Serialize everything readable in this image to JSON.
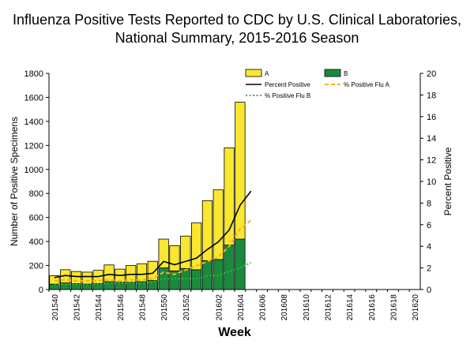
{
  "chart_data": {
    "type": "bar",
    "title_line1": "Influenza Positive Tests Reported to CDC by U.S. Clinical Laboratories,",
    "title_line2": "National Summary, 2015-2016 Season",
    "xlabel": "Week",
    "ylabel": "Number of Positive Specimens",
    "y2label": "Percent Positive",
    "ylim": [
      0,
      1800
    ],
    "y2lim": [
      0,
      20
    ],
    "yticks": [
      "0",
      "200",
      "400",
      "600",
      "800",
      "1000",
      "1200",
      "1400",
      "1600",
      "1800"
    ],
    "y2ticks": [
      "0",
      "2",
      "4",
      "6",
      "8",
      "10",
      "12",
      "14",
      "16",
      "18",
      "20"
    ],
    "weeks": [
      "201540",
      "201541",
      "201542",
      "201543",
      "201544",
      "201545",
      "201546",
      "201547",
      "201548",
      "201549",
      "201550",
      "201551",
      "201552",
      "201553",
      "201601",
      "201602",
      "201603",
      "201604",
      "201605",
      "201606",
      "201607",
      "201608",
      "201609",
      "201610",
      "201611",
      "201612",
      "201613",
      "201614",
      "201615",
      "201616",
      "201617",
      "201618",
      "201619",
      "201620"
    ],
    "tick_labels": [
      "201540",
      "",
      "201542",
      "",
      "201544",
      "",
      "201546",
      "",
      "201548",
      "",
      "201550",
      "",
      "201552",
      "",
      "",
      "201602",
      "",
      "201604",
      "",
      "201606",
      "",
      "201608",
      "",
      "201610",
      "",
      "201612",
      "",
      "201614",
      "",
      "201616",
      "",
      "201618",
      "",
      "201620"
    ],
    "series": [
      {
        "name": "A",
        "kind": "bar",
        "color": "#FAE72F",
        "values": [
          70,
          110,
          100,
          100,
          110,
          140,
          110,
          140,
          150,
          160,
          240,
          210,
          270,
          390,
          500,
          580,
          810,
          1140,
          null,
          null,
          null,
          null,
          null,
          null,
          null,
          null,
          null,
          null,
          null,
          null,
          null,
          null,
          null,
          null
        ]
      },
      {
        "name": "B",
        "kind": "bar",
        "color": "#1A8A3C",
        "values": [
          45,
          55,
          50,
          45,
          50,
          65,
          60,
          60,
          65,
          75,
          180,
          155,
          175,
          165,
          240,
          250,
          370,
          420,
          null,
          null,
          null,
          null,
          null,
          null,
          null,
          null,
          null,
          null,
          null,
          null,
          null,
          null,
          null,
          null
        ]
      },
      {
        "name": "Percent Positive",
        "kind": "line",
        "color": "#000000",
        "values": [
          1.1,
          1.3,
          1.2,
          1.2,
          1.2,
          1.4,
          1.3,
          1.4,
          1.4,
          1.5,
          2.6,
          2.3,
          2.6,
          2.9,
          3.7,
          4.4,
          5.5,
          7.8,
          9.1,
          null,
          null,
          null,
          null,
          null,
          null,
          null,
          null,
          null,
          null,
          null,
          null,
          null,
          null,
          null
        ]
      },
      {
        "name": "% Positive Flu A",
        "kind": "line",
        "color": "#F5B21E",
        "dash": "dashed",
        "values": [
          0.8,
          0.9,
          0.8,
          0.8,
          0.8,
          0.9,
          0.8,
          0.9,
          0.9,
          1.0,
          1.6,
          1.4,
          1.8,
          2.2,
          2.6,
          3.0,
          4.0,
          5.6,
          6.4,
          null,
          null,
          null,
          null,
          null,
          null,
          null,
          null,
          null,
          null,
          null,
          null,
          null,
          null,
          null
        ]
      },
      {
        "name": "% Positive Flu B",
        "kind": "line",
        "color": "#2EBD2E",
        "dash": "dotted",
        "values": [
          0.5,
          0.5,
          0.5,
          0.5,
          0.5,
          0.6,
          0.6,
          0.6,
          0.6,
          0.7,
          1.0,
          1.0,
          1.0,
          1.0,
          1.3,
          1.3,
          1.7,
          2.0,
          2.5,
          null,
          null,
          null,
          null,
          null,
          null,
          null,
          null,
          null,
          null,
          null,
          null,
          null,
          null,
          null
        ]
      }
    ],
    "legend_placement": "top-right"
  }
}
